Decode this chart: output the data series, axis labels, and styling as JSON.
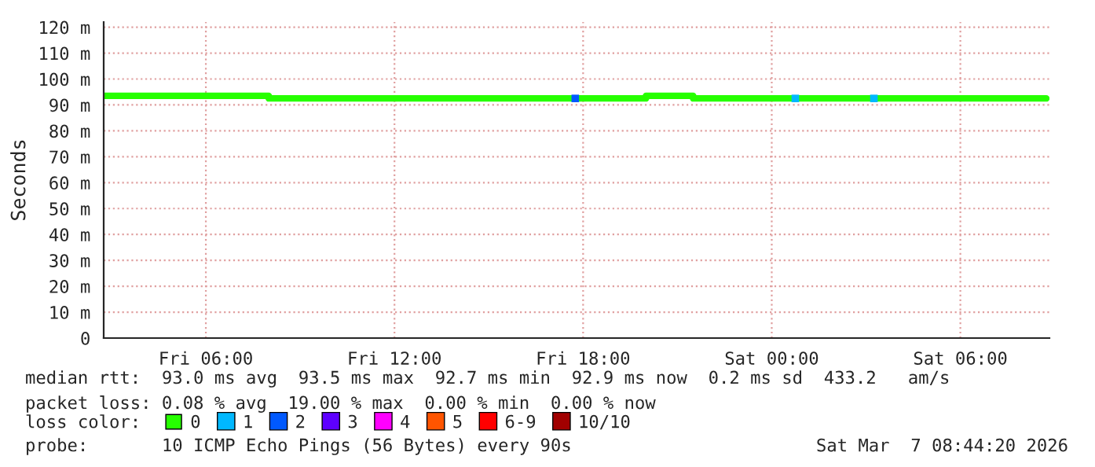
{
  "chart_data": {
    "type": "step",
    "ylabel": "Seconds",
    "legend_title": "loss color:",
    "annotations": [
      "median rtt:  93.0 ms avg  93.5 ms max  92.7 ms min  92.9 ms now  0.2 ms sd  433.2   am/s",
      "packet loss: 0.08 % avg  19.00 % max  0.00 % min  0.00 % now",
      "probe:       10 ICMP Echo Pings (56 Bytes) every 90s",
      "Sat Mar  7 08:44:20 2026"
    ],
    "xlim": [
      "2026-03-06T02:45",
      "2026-03-07T08:50"
    ],
    "xticks": [
      {
        "value": "2026-03-06T06:00",
        "label": "Fri 06:00"
      },
      {
        "value": "2026-03-06T12:00",
        "label": "Fri 12:00"
      },
      {
        "value": "2026-03-06T18:00",
        "label": "Fri 18:00"
      },
      {
        "value": "2026-03-07T00:00",
        "label": "Sat 00:00"
      },
      {
        "value": "2026-03-07T06:00",
        "label": "Sat 06:00"
      }
    ],
    "ylim": [
      0,
      122
    ],
    "yticks": [
      0,
      {
        "value": 10,
        "label": "10 m"
      },
      {
        "value": 20,
        "label": "20 m"
      },
      {
        "value": 30,
        "label": "30 m"
      },
      {
        "value": 40,
        "label": "40 m"
      },
      {
        "value": 50,
        "label": "50 m"
      },
      {
        "value": 60,
        "label": "60 m"
      },
      {
        "value": 70,
        "label": "70 m"
      },
      {
        "value": 80,
        "label": "80 m"
      },
      {
        "value": 90,
        "label": "90 m"
      },
      {
        "value": 100,
        "label": "100 m"
      },
      {
        "value": 110,
        "label": "110 m"
      },
      {
        "value": 120,
        "label": "120 m"
      }
    ],
    "grid": true,
    "legend": "bottom",
    "series": [
      {
        "name": "0",
        "color": "#26ff00",
        "x": [
          "2026-03-06T02:45",
          "2026-03-06T08:00",
          "2026-03-06T20:00",
          "2026-03-06T21:30",
          "2026-03-07T08:44"
        ],
        "values": [
          93.5,
          92.5,
          93.5,
          92.5,
          92.5
        ]
      },
      {
        "name": "1",
        "type": "scatter",
        "marker": "square",
        "color": "#00b8ff",
        "x": [
          "2026-03-07T00:45",
          "2026-03-07T03:15"
        ],
        "values": [
          92.5,
          92.5
        ]
      },
      {
        "name": "2",
        "type": "scatter",
        "marker": "square",
        "color": "#0059ff",
        "x": [
          "2026-03-06T17:45"
        ],
        "values": [
          92.5
        ]
      },
      {
        "name": "3",
        "type": "scatter",
        "marker": "square",
        "color": "#5e00ff"
      },
      {
        "name": "4",
        "type": "scatter",
        "marker": "square",
        "color": "#ff00fe"
      },
      {
        "name": "5",
        "type": "scatter",
        "marker": "square",
        "color": "#ff5500"
      },
      {
        "name": "6-9",
        "type": "scatter",
        "marker": "square",
        "color": "#ff0000"
      },
      {
        "name": "10/10",
        "type": "scatter",
        "marker": "square",
        "color": "#a10000"
      }
    ]
  }
}
